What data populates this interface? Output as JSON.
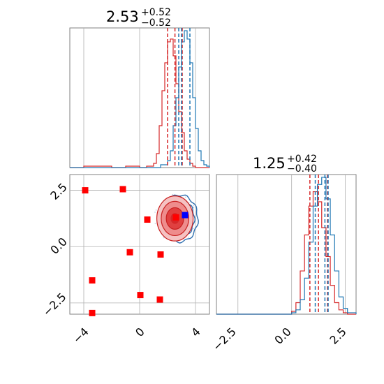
{
  "chart_data": [
    {
      "type": "histogram",
      "panel": "top-left",
      "title": {
        "value": "2.53",
        "plus": "+0.52",
        "minus": "−0.52"
      },
      "xlim": [
        -5,
        5
      ],
      "grid": true,
      "series": [
        {
          "color": "#d62728",
          "x": [
            -5,
            -4,
            -3,
            -2,
            -1,
            0,
            0.5,
            1,
            1.2,
            1.4,
            1.6,
            1.8,
            2.0,
            2.2,
            2.4,
            2.6,
            2.8,
            3.0,
            3.2,
            3.4,
            3.6,
            3.8,
            4.0,
            4.5,
            5
          ],
          "y": [
            0,
            0.01,
            0.01,
            0,
            0.01,
            0,
            0.01,
            0.03,
            0.1,
            0.3,
            0.55,
            0.75,
            0.9,
            0.92,
            0.8,
            0.6,
            0.4,
            0.25,
            0.12,
            0.06,
            0.03,
            0.01,
            0,
            0,
            0
          ]
        },
        {
          "color": "#1f77b4",
          "x": [
            -5,
            -4,
            -3,
            -2,
            -1,
            0,
            0.5,
            1,
            1.5,
            2.0,
            2.2,
            2.4,
            2.6,
            2.8,
            3.0,
            3.2,
            3.4,
            3.6,
            3.8,
            4.0,
            4.2,
            4.4,
            4.6,
            4.8,
            5
          ],
          "y": [
            0,
            0,
            0,
            0,
            0,
            0,
            0,
            0,
            0.02,
            0.05,
            0.12,
            0.3,
            0.5,
            0.72,
            0.9,
            0.98,
            0.92,
            0.75,
            0.5,
            0.28,
            0.12,
            0.05,
            0.02,
            0.01,
            0
          ]
        }
      ],
      "quantile_lines": [
        {
          "color": "#d62728",
          "x": [
            2.0,
            2.53,
            3.05
          ]
        },
        {
          "color": "#1f77b4",
          "x": [
            2.8,
            3.0,
            3.6
          ]
        }
      ]
    },
    {
      "type": "scatter",
      "panel": "bottom-left",
      "xlim": [
        -5,
        5
      ],
      "ylim": [
        -3,
        3.2
      ],
      "xticks": [
        "−4",
        "0",
        "4"
      ],
      "yticks": [
        "2.5",
        "0.0",
        "−2.5"
      ],
      "grid": true,
      "red_markers": [
        [
          -3.9,
          2.5
        ],
        [
          -1.2,
          2.55
        ],
        [
          0.55,
          1.2
        ],
        [
          -0.7,
          -0.25
        ],
        [
          1.5,
          -0.35
        ],
        [
          -3.4,
          -1.5
        ],
        [
          0.05,
          -2.15
        ],
        [
          1.45,
          -2.35
        ],
        [
          -3.4,
          -2.95
        ],
        [
          2.6,
          1.3
        ]
      ],
      "blue_marker": [
        3.25,
        1.4
      ],
      "contour_center": [
        2.53,
        1.25
      ],
      "contour_sigma": [
        0.52,
        0.4
      ]
    },
    {
      "type": "histogram",
      "panel": "bottom-right",
      "title": {
        "value": "1.25",
        "plus": "+0.42",
        "minus": "−0.40"
      },
      "xlim": [
        -3.5,
        3.0
      ],
      "xticks": [
        "−2.5",
        "0.0",
        "2.5"
      ],
      "grid": true,
      "series": [
        {
          "color": "#d62728",
          "x": [
            -3.5,
            -1,
            0,
            0.2,
            0.4,
            0.6,
            0.8,
            1.0,
            1.2,
            1.4,
            1.6,
            1.8,
            2.0,
            2.2,
            2.4,
            2.6,
            3.0
          ],
          "y": [
            0,
            0,
            0.02,
            0.08,
            0.3,
            0.55,
            0.75,
            0.85,
            0.78,
            0.6,
            0.4,
            0.2,
            0.08,
            0.03,
            0.01,
            0,
            0
          ]
        },
        {
          "color": "#1f77b4",
          "x": [
            -3.5,
            -1,
            0,
            0.2,
            0.4,
            0.6,
            0.8,
            1.0,
            1.2,
            1.4,
            1.6,
            1.8,
            2.0,
            2.2,
            2.4,
            2.6,
            3.0
          ],
          "y": [
            0,
            0,
            0.01,
            0.03,
            0.1,
            0.25,
            0.5,
            0.75,
            0.9,
            0.95,
            0.8,
            0.55,
            0.3,
            0.12,
            0.04,
            0.01,
            0
          ]
        }
      ],
      "quantile_lines": [
        {
          "color": "#d62728",
          "x": [
            0.85,
            1.25,
            1.67
          ]
        },
        {
          "color": "#1f77b4",
          "x": [
            1.1,
            1.55,
            1.7
          ]
        }
      ]
    }
  ]
}
